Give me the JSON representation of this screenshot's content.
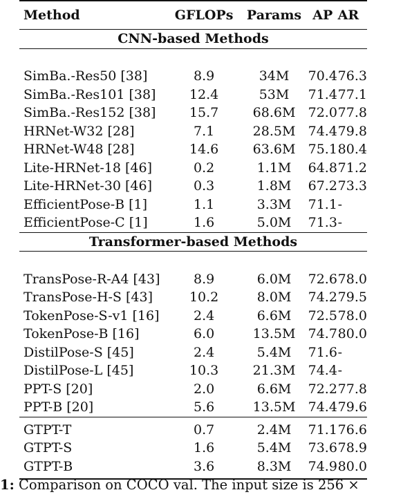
{
  "table": {
    "headers": [
      "Method",
      "GFLOPs",
      "Params",
      "AP",
      "AR"
    ],
    "sections": [
      {
        "title": "CNN-based Methods",
        "rows": [
          [
            "SimBa.-Res50 [38]",
            "8.9",
            "34M",
            "70.4",
            "76.3"
          ],
          [
            "SimBa.-Res101 [38]",
            "12.4",
            "53M",
            "71.4",
            "77.1"
          ],
          [
            "SimBa.-Res152 [38]",
            "15.7",
            "68.6M",
            "72.0",
            "77.8"
          ],
          [
            "HRNet-W32 [28]",
            "7.1",
            "28.5M",
            "74.4",
            "79.8"
          ],
          [
            "HRNet-W48 [28]",
            "14.6",
            "63.6M",
            "75.1",
            "80.4"
          ],
          [
            "Lite-HRNet-18 [46]",
            "0.2",
            "1.1M",
            "64.8",
            "71.2"
          ],
          [
            "Lite-HRNet-30 [46]",
            "0.3",
            "1.8M",
            "67.2",
            "73.3"
          ],
          [
            "EfficientPose-B [1]",
            "1.1",
            "3.3M",
            "71.1",
            "-"
          ],
          [
            "EfficientPose-C [1]",
            "1.6",
            "5.0M",
            "71.3",
            "-"
          ]
        ]
      },
      {
        "title": "Transformer-based Methods",
        "rows": [
          [
            "TransPose-R-A4 [43]",
            "8.9",
            "6.0M",
            "72.6",
            "78.0"
          ],
          [
            "TransPose-H-S [43]",
            "10.2",
            "8.0M",
            "74.2",
            "79.5"
          ],
          [
            "TokenPose-S-v1 [16]",
            "2.4",
            "6.6M",
            "72.5",
            "78.0"
          ],
          [
            "TokenPose-B [16]",
            "6.0",
            "13.5M",
            "74.7",
            "80.0"
          ],
          [
            "DistilPose-S [45]",
            "2.4",
            "5.4M",
            "71.6",
            "-"
          ],
          [
            "DistilPose-L [45]",
            "10.3",
            "21.3M",
            "74.4",
            "-"
          ],
          [
            "PPT-S [20]",
            "2.0",
            "6.6M",
            "72.2",
            "77.8"
          ],
          [
            "PPT-B [20]",
            "5.6",
            "13.5M",
            "74.4",
            "79.6"
          ]
        ]
      }
    ],
    "ours": [
      [
        "GTPT-T",
        "0.7",
        "2.4M",
        "71.1",
        "76.6"
      ],
      [
        "GTPT-S",
        "1.6",
        "5.4M",
        "73.6",
        "78.9"
      ],
      [
        "GTPT-B",
        "3.6",
        "8.3M",
        "74.9",
        "80.0"
      ]
    ]
  },
  "caption": {
    "label": "1:",
    "text": "Comparison on COCO val. The input size is 256 ×"
  }
}
